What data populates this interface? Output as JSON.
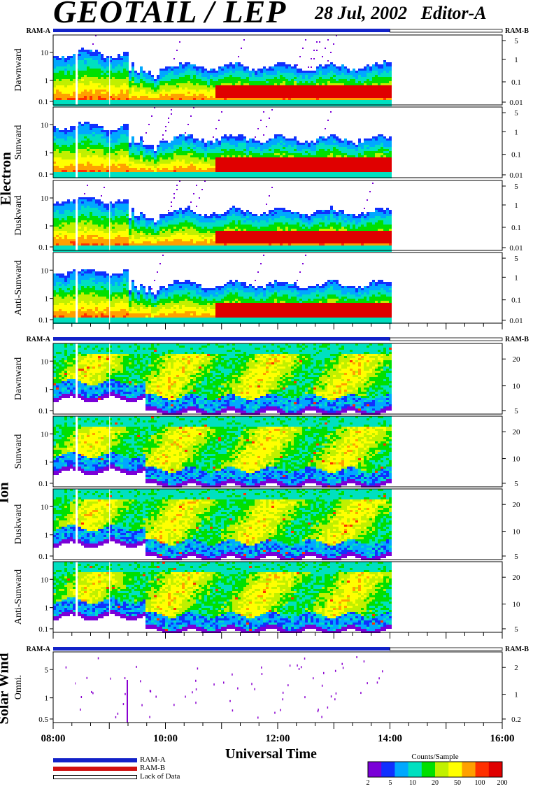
{
  "header": {
    "title": "GEOTAIL / LEP",
    "date": "28 Jul, 2002",
    "editor": "Editor-A"
  },
  "groups": [
    "Electron",
    "Ion",
    "Solar Wind"
  ],
  "ram_labels": {
    "left": "RAM-A",
    "right": "RAM-B"
  },
  "colors": {
    "ram_a": "#1222c8",
    "ram_b": "#d01010",
    "lack": "#ffffff"
  },
  "chart_data": {
    "type": "heatmap",
    "xlabel": "Universal Time",
    "x_ticks": [
      "08:00",
      "10:00",
      "12:00",
      "14:00",
      "16:00"
    ],
    "x_range_hours": [
      8,
      16
    ],
    "data_end_hour": 14.0,
    "ram_a_coverage_hours": [
      8,
      14
    ],
    "gaps_hours": [
      8.4,
      9.0
    ],
    "panels": [
      {
        "group": "Electron",
        "name": "Dawnward",
        "left_ticks": [
          "10",
          "1",
          "0.1"
        ],
        "right_ticks": [
          "5",
          "1",
          "0.1",
          "0.01"
        ]
      },
      {
        "group": "Electron",
        "name": "Sunward",
        "left_ticks": [
          "10",
          "1",
          "0.1"
        ],
        "right_ticks": [
          "5",
          "1",
          "0.1",
          "0.01"
        ]
      },
      {
        "group": "Electron",
        "name": "Duskward",
        "left_ticks": [
          "10",
          "1",
          "0.1"
        ],
        "right_ticks": [
          "5",
          "1",
          "0.1",
          "0.01"
        ]
      },
      {
        "group": "Electron",
        "name": "Anti-Sunward",
        "left_ticks": [
          "10",
          "1",
          "0.1"
        ],
        "right_ticks": [
          "5",
          "1",
          "0.1",
          "0.01"
        ]
      },
      {
        "group": "Ion",
        "name": "Dawnward",
        "left_ticks": [
          "10",
          "1",
          "0.1"
        ],
        "right_ticks": [
          "20",
          "10",
          "5"
        ]
      },
      {
        "group": "Ion",
        "name": "Sunward",
        "left_ticks": [
          "10",
          "1",
          "0.1"
        ],
        "right_ticks": [
          "20",
          "10",
          "5"
        ]
      },
      {
        "group": "Ion",
        "name": "Duskward",
        "left_ticks": [
          "10",
          "1",
          "0.1"
        ],
        "right_ticks": [
          "20",
          "10",
          "5"
        ]
      },
      {
        "group": "Ion",
        "name": "Anti-Sunward",
        "left_ticks": [
          "10",
          "1",
          "0.1"
        ],
        "right_ticks": [
          "20",
          "10",
          "5"
        ]
      },
      {
        "group": "Solar Wind",
        "name": "Omni.",
        "left_ticks": [
          "5",
          "1",
          "0.5"
        ],
        "right_ticks": [
          "2",
          "1",
          "0.2"
        ]
      }
    ],
    "colorbar": {
      "title": "Counts/Sample",
      "ticks": [
        "2",
        "5",
        "10",
        "20",
        "50",
        "100",
        "200"
      ],
      "colors": [
        "#7a00d8",
        "#1030ff",
        "#00a8ff",
        "#00e0c0",
        "#00e000",
        "#c0f000",
        "#ffff00",
        "#ffa000",
        "#ff3000",
        "#e00000"
      ]
    }
  },
  "legend": [
    "RAM-A",
    "RAM-B",
    "Lack of Data"
  ]
}
